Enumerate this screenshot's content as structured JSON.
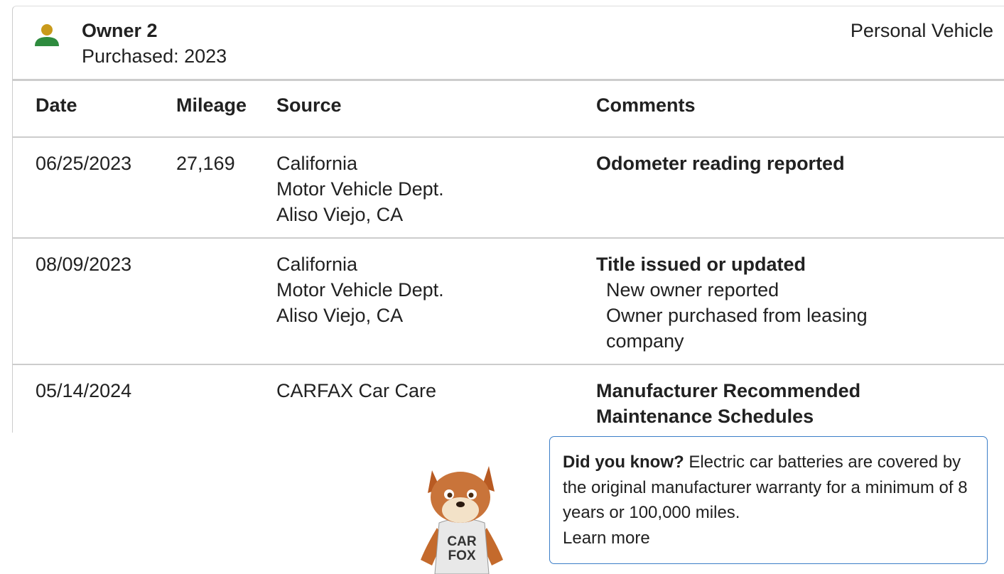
{
  "header": {
    "owner": "Owner 2",
    "purchased": "Purchased: 2023",
    "usage": "Personal Vehicle"
  },
  "table": {
    "columns": [
      "Date",
      "Mileage",
      "Source",
      "Comments"
    ],
    "rows": [
      {
        "date": "06/25/2023",
        "mileage": "27,169",
        "source": [
          "California",
          "Motor Vehicle Dept.",
          "Aliso Viejo, CA"
        ],
        "comment": "Odometer reading reported"
      },
      {
        "date": "08/09/2023",
        "source": [
          "California",
          "Motor Vehicle Dept.",
          "Aliso Viejo, CA"
        ],
        "comment": "Title issued or updated",
        "details": [
          "New owner reported",
          "Owner purchased from leasing company"
        ]
      },
      {
        "date": "05/14/2024",
        "source": [
          "CARFAX Car Care"
        ],
        "comment": "Manufacturer Recommended Maintenance Schedules"
      }
    ]
  },
  "callout": {
    "lead": "Did you know?",
    "text": "Electric car batteries are covered by the original manufacturer warranty for a minimum of 8 years or 100,000 miles.",
    "link": "Learn more"
  },
  "mascot": {
    "shirt": [
      "CAR",
      "FOX"
    ]
  }
}
